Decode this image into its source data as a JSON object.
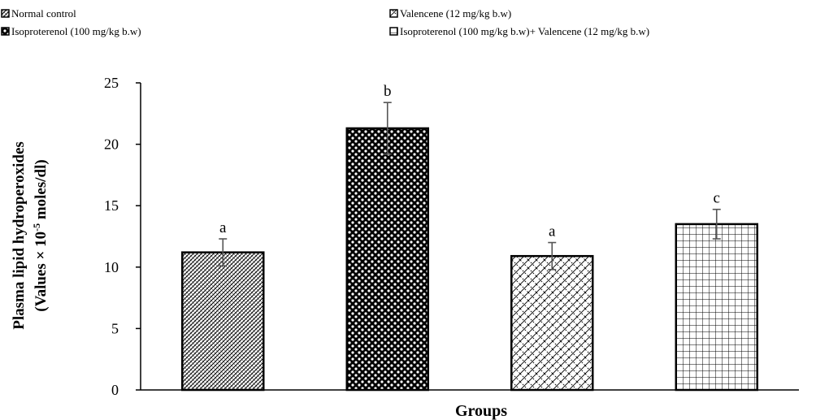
{
  "chart_data": {
    "type": "bar",
    "categories": [
      "Normal control",
      "Isoproterenol (100 mg/kg b.w)",
      "Valencene (12 mg/kg b.w)",
      "Isoproterenol (100 mg/kg b.w)+ Valencene (12 mg/kg b.w)"
    ],
    "bar_order": [
      0,
      2,
      1,
      3
    ],
    "values": [
      11.2,
      10.9,
      21.3,
      13.5
    ],
    "errors": [
      1.1,
      1.1,
      2.1,
      1.2
    ],
    "significance_letters": [
      "a",
      "a",
      "b",
      "c"
    ],
    "patterns": [
      "dense-diagonal",
      "diagonal-lattice",
      "checker-dots",
      "grid"
    ],
    "legend": [
      {
        "label": "Normal control",
        "pattern": "dense-diagonal"
      },
      {
        "label": "Valencene (12 mg/kg b.w)",
        "pattern": "diagonal-lattice"
      },
      {
        "label": "Isoproterenol (100 mg/kg b.w)",
        "pattern": "checker-dots"
      },
      {
        "label": "Isoproterenol (100 mg/kg b.w)+ Valencene (12 mg/kg b.w)",
        "pattern": "grid"
      }
    ],
    "legend_position": "top",
    "xlabel": "Groups",
    "ylabel_line1": "Plasma lipid hydroperoxides",
    "ylabel_line2_prefix": "(Values × 10",
    "ylabel_line2_sup": "-5",
    "ylabel_line2_suffix": " moles/dl)",
    "ylim": [
      0,
      25
    ],
    "yticks": [
      0,
      5,
      10,
      15,
      20,
      25
    ],
    "grid": false,
    "colors": {
      "bar_fill": "#000000",
      "bar_bg": "#ffffff",
      "axis": "#000000",
      "error": "#555555"
    }
  }
}
